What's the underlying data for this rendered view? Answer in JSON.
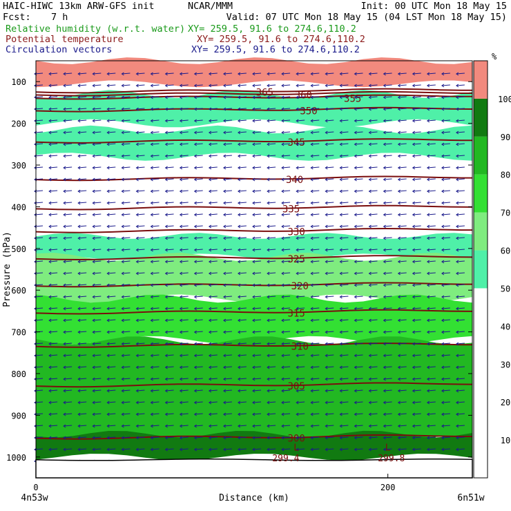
{
  "header": {
    "model": "HAIC-HIWC 13km ARW-GFS init",
    "org": "NCAR/MMM",
    "init": "Init: 00 UTC Mon 18 May 15",
    "fcst_label": "Fcst:",
    "fcst_value": "7 h",
    "valid": "Valid: 07 UTC Mon 18 May 15 (04 LST Mon 18 May 15)",
    "fields": [
      {
        "name": "Relative humidity (w.r.t. water)",
        "xy": "XY= 259.5, 91.6 to 274.6,110.2",
        "color": "#1a9a1a"
      },
      {
        "name": "Potential temperature",
        "xy": "XY= 259.5, 91.6 to 274.6,110.2",
        "color": "#8b1a1a"
      },
      {
        "name": "Circulation vectors",
        "xy": "XY= 259.5, 91.6 to 274.6,110.2",
        "color": "#1a1a8b"
      }
    ]
  },
  "chart_data": {
    "type": "heatmap",
    "title": "Relative humidity (w.r.t. water), Potential temperature, Circulation vectors",
    "xlabel": "Distance (km)",
    "ylabel": "Pressure (hPa)",
    "xlim": [
      0,
      248
    ],
    "ylim": [
      1050,
      50
    ],
    "x_ticks": [
      "0",
      "200"
    ],
    "x_tick_values": [
      0,
      200
    ],
    "y_ticks": [
      "100",
      "200",
      "300",
      "400",
      "500",
      "600",
      "700",
      "800",
      "900",
      "1000"
    ],
    "y_tick_values": [
      100,
      200,
      300,
      400,
      500,
      600,
      700,
      800,
      900,
      1000
    ],
    "x_end_labels": {
      "left": "4n53w",
      "right": "6n51w"
    },
    "colorbar": {
      "unit": "%",
      "levels": [
        10,
        20,
        30,
        40,
        50,
        60,
        70,
        80,
        90,
        100
      ],
      "fills": [
        {
          "from": 50,
          "to": 60,
          "color": "#4ff0a8"
        },
        {
          "from": 60,
          "to": 70,
          "color": "#7fec7f"
        },
        {
          "from": 70,
          "to": 80,
          "color": "#33e033"
        },
        {
          "from": 80,
          "to": 90,
          "color": "#22b822"
        },
        {
          "from": 90,
          "to": 100,
          "color": "#117a11"
        },
        {
          "from": 100,
          "to": 110,
          "color": "#f28a7e"
        }
      ]
    },
    "rh_layers": [
      {
        "p_top": 50,
        "p_bot": 105,
        "rh": 105
      },
      {
        "p_top": 130,
        "p_bot": 200,
        "rh": 55
      },
      {
        "p_top": 215,
        "p_bot": 280,
        "rh": 55
      },
      {
        "p_top": 470,
        "p_bot": 520,
        "rh": 55
      },
      {
        "p_top": 520,
        "p_bot": 620,
        "rh": 65
      },
      {
        "p_top": 620,
        "p_bot": 720,
        "rh": 75
      },
      {
        "p_top": 720,
        "p_bot": 960,
        "rh": 85
      },
      {
        "p_top": 945,
        "p_bot": 1000,
        "rh": 95
      }
    ],
    "theta_contours": [
      {
        "label": "365",
        "p": 125,
        "label_x": 130
      },
      {
        "label": "360",
        "p": 132,
        "label_x": 152
      },
      {
        "label": "355",
        "p": 140,
        "label_x": 180
      },
      {
        "label": "350",
        "p": 170,
        "label_x": 155
      },
      {
        "label": "345",
        "p": 245,
        "label_x": 148
      },
      {
        "label": "340",
        "p": 335,
        "label_x": 147
      },
      {
        "label": "335",
        "p": 405,
        "label_x": 145
      },
      {
        "label": "330",
        "p": 460,
        "label_x": 148
      },
      {
        "label": "325",
        "p": 525,
        "label_x": 148
      },
      {
        "label": "320",
        "p": 590,
        "label_x": 150
      },
      {
        "label": "315",
        "p": 655,
        "label_x": 148
      },
      {
        "label": "310",
        "p": 735,
        "label_x": 150
      },
      {
        "label": "305",
        "p": 830,
        "label_x": 148
      },
      {
        "label": "300",
        "p": 955,
        "label_x": 148
      }
    ],
    "surface_labels": [
      {
        "label": "L",
        "x": 148,
        "p": 985
      },
      {
        "label": "299.4",
        "x": 142,
        "p": 1010
      },
      {
        "label": "L",
        "x": 200,
        "p": 985
      },
      {
        "label": "299.8",
        "x": 202,
        "p": 1010
      }
    ],
    "vectors": {
      "dx": -6,
      "dy": 1
    }
  }
}
